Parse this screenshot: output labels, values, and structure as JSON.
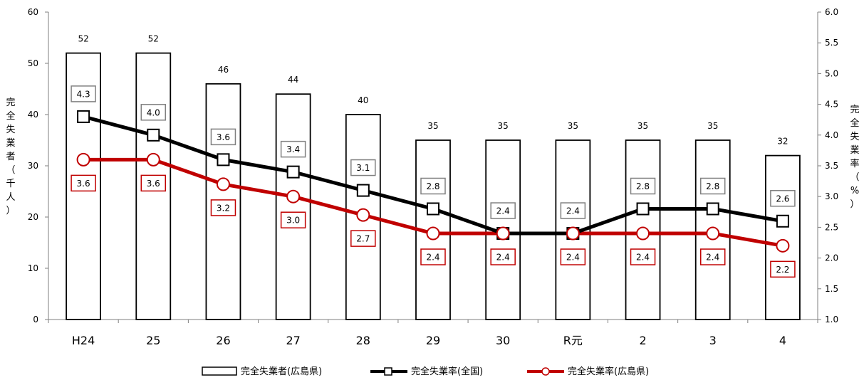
{
  "chart_data": {
    "type": "bar",
    "categories": [
      "H24",
      "25",
      "26",
      "27",
      "28",
      "29",
      "30",
      "R元",
      "2",
      "3",
      "4"
    ],
    "series": [
      {
        "name": "完全失業者(広島県)",
        "kind": "bar",
        "axis": "left",
        "values": [
          52,
          52,
          46,
          44,
          40,
          35,
          35,
          35,
          35,
          35,
          32
        ],
        "color": "#000000",
        "fill": "#ffffff"
      },
      {
        "name": "完全失業率(全国)",
        "kind": "line",
        "axis": "right",
        "values": [
          4.3,
          4.0,
          3.6,
          3.4,
          3.1,
          2.8,
          2.4,
          2.4,
          2.8,
          2.8,
          2.6
        ],
        "color": "#000000",
        "marker": "square"
      },
      {
        "name": "完全失業率(広島県)",
        "kind": "line",
        "axis": "right",
        "values": [
          3.6,
          3.6,
          3.2,
          3.0,
          2.7,
          2.4,
          2.4,
          2.4,
          2.4,
          2.4,
          2.2
        ],
        "color": "#c00000",
        "marker": "circle"
      }
    ],
    "y_left": {
      "label": "完全失業者（千人）",
      "ylim": [
        0,
        60
      ],
      "ticks": [
        "0",
        "10",
        "20",
        "30",
        "40",
        "50",
        "60"
      ]
    },
    "y_right": {
      "label": "完全失業率（%）",
      "ylim": [
        1.0,
        6.0
      ],
      "ticks": [
        "1.0",
        "1.5",
        "2.0",
        "2.5",
        "3.0",
        "3.5",
        "4.0",
        "4.5",
        "5.0",
        "5.5",
        "6.0"
      ]
    },
    "legend": {
      "position": "bottom",
      "items": [
        "完全失業者(広島県)",
        "完全失業率(全国)",
        "完全失業率(広島県)"
      ]
    },
    "grid": false,
    "colors": {
      "national": "#000000",
      "hiroshima": "#c00000",
      "axis": "#808080"
    }
  }
}
